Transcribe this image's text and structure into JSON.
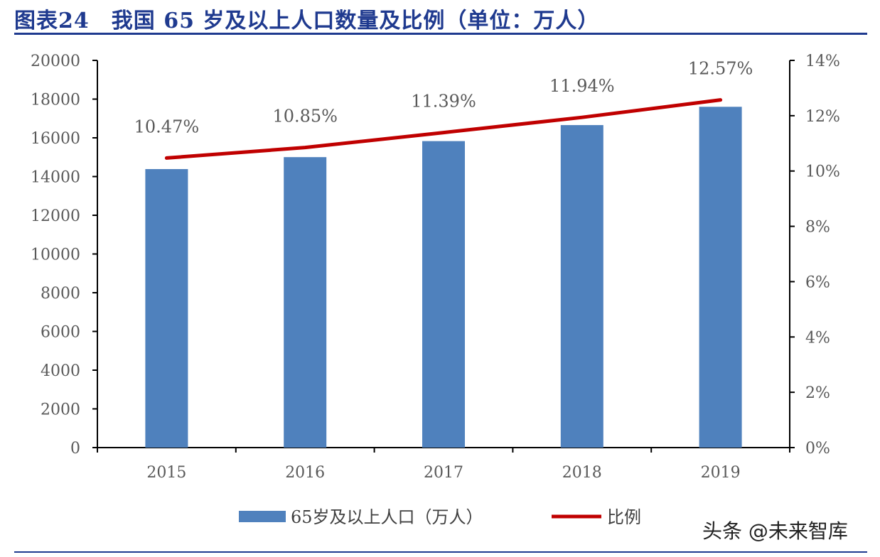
{
  "header": {
    "title": "图表24　我国 65 岁及以上人口数量及比例（单位：万人）"
  },
  "watermark": "头条 @未来智库",
  "colors": {
    "bar": "#4f81bd",
    "line": "#c00000",
    "title": "#1f3a8f",
    "axis": "#000000"
  },
  "chart_data": {
    "type": "bar",
    "categories": [
      "2015",
      "2016",
      "2017",
      "2018",
      "2019"
    ],
    "series": [
      {
        "name": "65岁及以上人口（万人）",
        "type": "bar",
        "axis": "left",
        "values": [
          14386,
          15003,
          15831,
          16658,
          17603
        ]
      },
      {
        "name": "比例",
        "type": "line",
        "axis": "right",
        "values": [
          10.47,
          10.85,
          11.39,
          11.94,
          12.57
        ]
      }
    ],
    "data_labels": [
      "10.47%",
      "10.85%",
      "11.39%",
      "11.94%",
      "12.57%"
    ],
    "y_left": {
      "lim": [
        0,
        20000
      ],
      "ticks": [
        "0",
        "2000",
        "4000",
        "6000",
        "8000",
        "10000",
        "12000",
        "14000",
        "16000",
        "18000",
        "20000"
      ]
    },
    "y_right": {
      "lim": [
        0,
        14
      ],
      "ticks": [
        "0%",
        "2%",
        "4%",
        "6%",
        "8%",
        "10%",
        "12%",
        "14%"
      ]
    },
    "grid": false,
    "legend_position": "bottom"
  }
}
